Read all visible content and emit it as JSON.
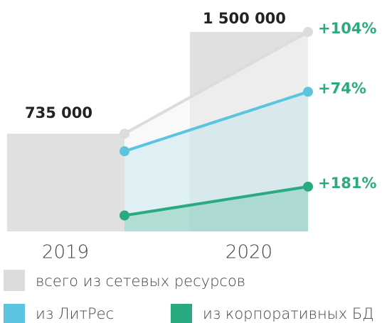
{
  "chart_data": {
    "type": "bar-line",
    "categories": [
      "2019",
      "2020"
    ],
    "bars": {
      "color": "#e0e0e0",
      "values": [
        735000,
        1500000
      ],
      "value_labels": [
        "735 000",
        "1 500 000"
      ]
    },
    "ylim": [
      0,
      1500000
    ],
    "label_color": "#2aaa80",
    "series": [
      {
        "name": "всего из сетевых ресурсов",
        "color": "#dcdcdc",
        "values": [
          735000,
          1500000
        ],
        "label": "+104%"
      },
      {
        "name": "из ЛитРес",
        "color": "#5bc5e0",
        "values": [
          603000,
          1050000
        ],
        "label": "+74%"
      },
      {
        "name": "из корпоративных БД",
        "color": "#2aaa80",
        "values": [
          120000,
          337000
        ],
        "label": "+181%"
      }
    ]
  }
}
